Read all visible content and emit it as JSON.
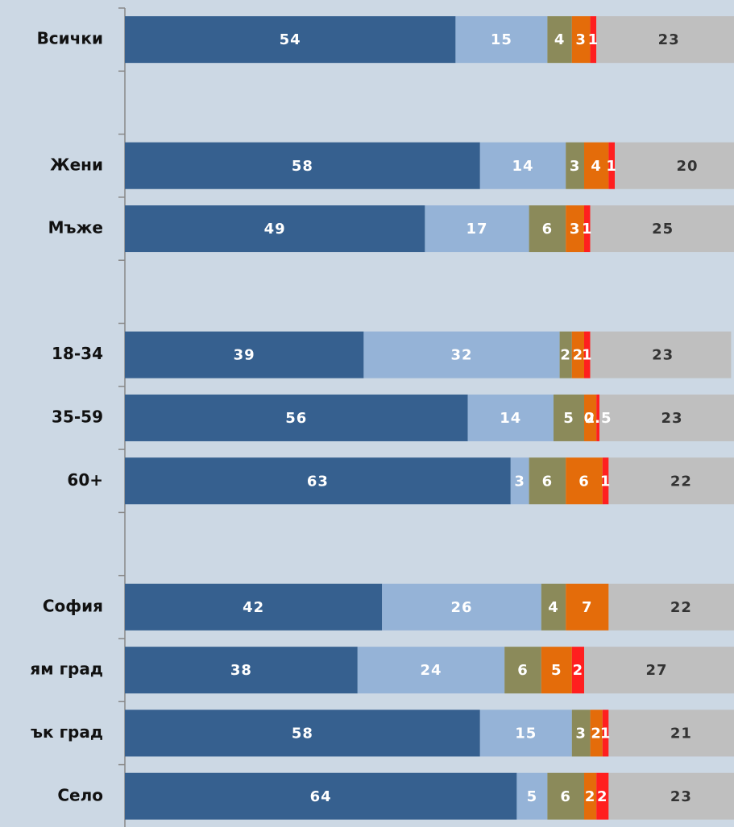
{
  "chart_data": {
    "type": "stacked-bar-horizontal",
    "categories": [
      "Всички",
      null,
      "Жени",
      "Мъже",
      null,
      "18-34",
      "35-59",
      "60+",
      null,
      "София",
      "ям град",
      "ък град",
      "Село"
    ],
    "series": [
      {
        "color": "#36608f",
        "values": [
          54,
          null,
          58,
          49,
          null,
          39,
          56,
          63,
          null,
          42,
          38,
          58,
          64
        ]
      },
      {
        "color": "#95b3d7",
        "values": [
          15,
          null,
          14,
          17,
          null,
          32,
          14,
          3,
          null,
          26,
          24,
          15,
          5
        ]
      },
      {
        "color": "#8b8a5a",
        "values": [
          4,
          null,
          3,
          6,
          null,
          2,
          5,
          6,
          null,
          4,
          6,
          3,
          6
        ]
      },
      {
        "color": "#e46c0a",
        "values": [
          3,
          null,
          4,
          3,
          null,
          2,
          2,
          6,
          null,
          7,
          5,
          2,
          2
        ]
      },
      {
        "color": "#ff1f1f",
        "values": [
          1,
          null,
          1,
          1,
          null,
          1,
          0.5,
          1,
          null,
          null,
          2,
          1,
          2
        ]
      },
      {
        "color": "#bfbfbf",
        "values": [
          23,
          null,
          20,
          25,
          null,
          23,
          23,
          22,
          null,
          22,
          27,
          21,
          23
        ]
      }
    ]
  }
}
